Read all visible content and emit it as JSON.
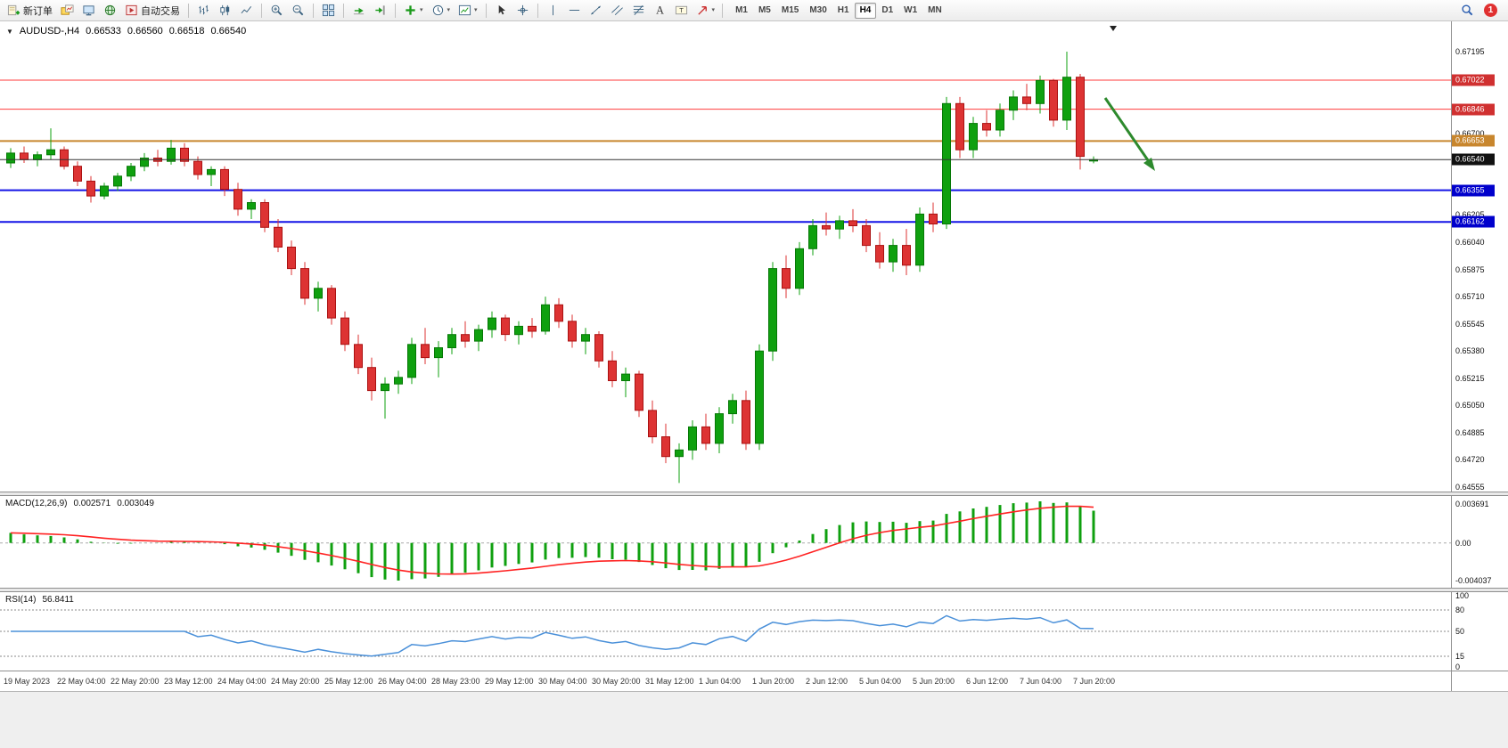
{
  "toolbar": {
    "groups": [
      [
        {
          "name": "new-order",
          "icon": "new-order-icon",
          "label": "新订单"
        },
        {
          "name": "charts-stack",
          "icon": "charts-stack-icon"
        },
        {
          "name": "terminal",
          "icon": "terminal-icon"
        },
        {
          "name": "web-community",
          "icon": "globe-icon"
        },
        {
          "name": "auto-trading",
          "icon": "play-icon",
          "label": "自动交易"
        }
      ],
      [
        {
          "name": "bar-chart-mode",
          "icon": "bars-icon"
        },
        {
          "name": "candlestick-mode",
          "icon": "candles-icon"
        },
        {
          "name": "line-chart-mode",
          "icon": "line-chart-icon"
        }
      ],
      [
        {
          "name": "zoom-in",
          "icon": "zoom-in-icon"
        },
        {
          "name": "zoom-out",
          "icon": "zoom-out-icon"
        }
      ],
      [
        {
          "name": "tile-windows",
          "icon": "tile-windows-icon"
        }
      ],
      [
        {
          "name": "auto-scroll",
          "icon": "autoscroll-icon"
        },
        {
          "name": "chart-shift",
          "icon": "shift-icon"
        }
      ],
      [
        {
          "name": "indicators",
          "icon": "indicators-icon",
          "caret": true
        },
        {
          "name": "periods",
          "icon": "clock-icon",
          "caret": true
        },
        {
          "name": "templates",
          "icon": "templates-icon",
          "caret": true
        }
      ],
      [
        {
          "name": "cursor",
          "icon": "cursor-icon"
        },
        {
          "name": "crosshair",
          "icon": "crosshair-icon"
        }
      ],
      [
        {
          "name": "vertical-line-tool",
          "icon": "vline-icon"
        },
        {
          "name": "horizontal-line-tool",
          "icon": "hline-icon"
        },
        {
          "name": "trendline-tool",
          "icon": "trendline-icon"
        },
        {
          "name": "channel-tool",
          "icon": "channel-icon"
        },
        {
          "name": "fibonacci-tool",
          "icon": "fibonacci-icon"
        },
        {
          "name": "text-tool",
          "icon": "text-icon"
        },
        {
          "name": "label-tool",
          "icon": "label-icon"
        },
        {
          "name": "arrows-tool",
          "icon": "shapes-icon",
          "caret": true
        }
      ]
    ],
    "timeframes": [
      "M1",
      "M5",
      "M15",
      "M30",
      "H1",
      "H4",
      "D1",
      "W1",
      "MN"
    ],
    "active_timeframe": "H4",
    "notification_count": "1"
  },
  "chart_data": {
    "type": "candlestick",
    "symbol": "AUDUSD-,H4",
    "timeframe": "H4",
    "open": "0.66533",
    "high": "0.66560",
    "low": "0.66518",
    "close": "0.66540",
    "price_axis": {
      "min": 0.64555,
      "max": 0.67195,
      "labels": [
        0.67195,
        0.667,
        0.66205,
        0.6604,
        0.65875,
        0.6571,
        0.65545,
        0.6538,
        0.65215,
        0.6505,
        0.64885,
        0.6472,
        0.64555
      ]
    },
    "lines": [
      {
        "price": 0.67022,
        "color": "#ff3b3b",
        "width": 1,
        "badge": "#d03030"
      },
      {
        "price": 0.66846,
        "color": "#ff3b3b",
        "width": 1,
        "badge": "#d03030"
      },
      {
        "price": 0.66653,
        "color": "#c8862d",
        "width": 2,
        "badge": "#c8862d"
      },
      {
        "price": 0.6654,
        "color": "#333333",
        "width": 1,
        "badge": "#111111",
        "is_bid": true
      },
      {
        "price": 0.66355,
        "color": "#1414e6",
        "width": 2,
        "badge": "#0000cc"
      },
      {
        "price": 0.66162,
        "color": "#1414e6",
        "width": 2,
        "badge": "#0000cc"
      }
    ],
    "time_labels": [
      "19 May 2023",
      "22 May 04:00",
      "22 May 20:00",
      "23 May 12:00",
      "24 May 04:00",
      "24 May 20:00",
      "25 May 12:00",
      "26 May 04:00",
      "28 May 23:00",
      "29 May 12:00",
      "30 May 04:00",
      "30 May 20:00",
      "31 May 12:00",
      "1 Jun 04:00",
      "1 Jun 20:00",
      "2 Jun 12:00",
      "5 Jun 04:00",
      "5 Jun 20:00",
      "6 Jun 12:00",
      "7 Jun 04:00",
      "7 Jun 20:00"
    ],
    "colors": {
      "up": "#0fa00f",
      "up_border": "#067806",
      "down": "#dd3333",
      "down_border": "#aa1111",
      "macd_hist": "#0fa00f",
      "macd_signal": "#ff2222",
      "rsi": "#4a90d9"
    },
    "annotation": {
      "type": "arrow-down-right",
      "color": "#2d8a2d"
    },
    "candles": [
      [
        0.6652,
        0.6661,
        0.6649,
        0.6658
      ],
      [
        0.6658,
        0.6662,
        0.6652,
        0.6654
      ],
      [
        0.6654,
        0.6659,
        0.665,
        0.6657
      ],
      [
        0.6657,
        0.6673,
        0.6654,
        0.666
      ],
      [
        0.666,
        0.6662,
        0.6648,
        0.665
      ],
      [
        0.665,
        0.6653,
        0.6638,
        0.6641
      ],
      [
        0.6641,
        0.6644,
        0.6628,
        0.6632
      ],
      [
        0.6632,
        0.664,
        0.663,
        0.6638
      ],
      [
        0.6638,
        0.6646,
        0.6635,
        0.6644
      ],
      [
        0.6644,
        0.6652,
        0.6641,
        0.665
      ],
      [
        0.665,
        0.6658,
        0.6647,
        0.6655
      ],
      [
        0.6655,
        0.666,
        0.665,
        0.6653
      ],
      [
        0.6653,
        0.6666,
        0.6651,
        0.6661
      ],
      [
        0.6661,
        0.6664,
        0.665,
        0.6653
      ],
      [
        0.6653,
        0.6656,
        0.6642,
        0.6645
      ],
      [
        0.6645,
        0.665,
        0.6638,
        0.6648
      ],
      [
        0.6648,
        0.665,
        0.6632,
        0.6636
      ],
      [
        0.6636,
        0.664,
        0.662,
        0.6624
      ],
      [
        0.6624,
        0.663,
        0.6618,
        0.6628
      ],
      [
        0.6628,
        0.663,
        0.661,
        0.6613
      ],
      [
        0.6613,
        0.6618,
        0.6598,
        0.6601
      ],
      [
        0.6601,
        0.6605,
        0.6584,
        0.6588
      ],
      [
        0.6588,
        0.6592,
        0.6566,
        0.657
      ],
      [
        0.657,
        0.658,
        0.6562,
        0.6576
      ],
      [
        0.6576,
        0.6578,
        0.6554,
        0.6558
      ],
      [
        0.6558,
        0.6562,
        0.6538,
        0.6542
      ],
      [
        0.6542,
        0.6548,
        0.6524,
        0.6528
      ],
      [
        0.6528,
        0.6534,
        0.6508,
        0.6514
      ],
      [
        0.6514,
        0.6522,
        0.6497,
        0.6518
      ],
      [
        0.6518,
        0.6526,
        0.6512,
        0.6522
      ],
      [
        0.6522,
        0.6546,
        0.6518,
        0.6542
      ],
      [
        0.6542,
        0.6552,
        0.653,
        0.6534
      ],
      [
        0.6534,
        0.6544,
        0.6522,
        0.654
      ],
      [
        0.654,
        0.6552,
        0.6536,
        0.6548
      ],
      [
        0.6548,
        0.6556,
        0.654,
        0.6544
      ],
      [
        0.6544,
        0.6554,
        0.6538,
        0.6551
      ],
      [
        0.6551,
        0.6562,
        0.6546,
        0.6558
      ],
      [
        0.6558,
        0.656,
        0.6544,
        0.6548
      ],
      [
        0.6548,
        0.6556,
        0.6542,
        0.6553
      ],
      [
        0.6553,
        0.6558,
        0.6546,
        0.655
      ],
      [
        0.655,
        0.6571,
        0.6548,
        0.6566
      ],
      [
        0.6566,
        0.657,
        0.6552,
        0.6556
      ],
      [
        0.6556,
        0.656,
        0.654,
        0.6544
      ],
      [
        0.6544,
        0.6552,
        0.6536,
        0.6548
      ],
      [
        0.6548,
        0.655,
        0.6528,
        0.6532
      ],
      [
        0.6532,
        0.6538,
        0.6516,
        0.652
      ],
      [
        0.652,
        0.6528,
        0.651,
        0.6524
      ],
      [
        0.6524,
        0.6526,
        0.6498,
        0.6502
      ],
      [
        0.6502,
        0.6508,
        0.6482,
        0.6486
      ],
      [
        0.6486,
        0.6494,
        0.647,
        0.6474
      ],
      [
        0.6474,
        0.6482,
        0.6458,
        0.6478
      ],
      [
        0.6478,
        0.6496,
        0.6472,
        0.6492
      ],
      [
        0.6492,
        0.65,
        0.6478,
        0.6482
      ],
      [
        0.6482,
        0.6504,
        0.6476,
        0.65
      ],
      [
        0.65,
        0.6512,
        0.6494,
        0.6508
      ],
      [
        0.6508,
        0.6514,
        0.6478,
        0.6482
      ],
      [
        0.6482,
        0.6542,
        0.6478,
        0.6538
      ],
      [
        0.6538,
        0.6592,
        0.6532,
        0.6588
      ],
      [
        0.6588,
        0.6596,
        0.657,
        0.6576
      ],
      [
        0.6576,
        0.6604,
        0.6572,
        0.66
      ],
      [
        0.66,
        0.6618,
        0.6596,
        0.6614
      ],
      [
        0.6614,
        0.6622,
        0.6608,
        0.6612
      ],
      [
        0.6612,
        0.662,
        0.6606,
        0.6617
      ],
      [
        0.6617,
        0.6624,
        0.661,
        0.6614
      ],
      [
        0.6614,
        0.6618,
        0.6598,
        0.6602
      ],
      [
        0.6602,
        0.661,
        0.6588,
        0.6592
      ],
      [
        0.6592,
        0.6606,
        0.6586,
        0.6602
      ],
      [
        0.6602,
        0.6612,
        0.6584,
        0.659
      ],
      [
        0.659,
        0.6625,
        0.6586,
        0.6621
      ],
      [
        0.6621,
        0.6628,
        0.661,
        0.6615
      ],
      [
        0.6615,
        0.6692,
        0.6612,
        0.6688
      ],
      [
        0.6688,
        0.6692,
        0.6655,
        0.666
      ],
      [
        0.666,
        0.668,
        0.6655,
        0.6676
      ],
      [
        0.6676,
        0.6684,
        0.6668,
        0.6672
      ],
      [
        0.6672,
        0.6688,
        0.6668,
        0.6684
      ],
      [
        0.6684,
        0.6696,
        0.6678,
        0.6692
      ],
      [
        0.6692,
        0.67,
        0.6684,
        0.6688
      ],
      [
        0.6688,
        0.6705,
        0.6682,
        0.6702
      ],
      [
        0.6702,
        0.6703,
        0.6674,
        0.6678
      ],
      [
        0.6678,
        0.67195,
        0.6672,
        0.6704
      ],
      [
        0.6704,
        0.6706,
        0.6648,
        0.6656
      ],
      [
        0.66533,
        0.6656,
        0.66518,
        0.6654
      ]
    ]
  },
  "indicators": {
    "macd": {
      "title": "MACD(12,26,9)",
      "value_main": "0.002571",
      "value_signal": "0.003049",
      "axis_max": "0.003691",
      "axis_zero": "0.00",
      "axis_min": "-0.004037",
      "fast": 12,
      "slow": 26,
      "signal": 9
    },
    "rsi": {
      "title": "RSI(14)",
      "value": "56.8411",
      "period": 14,
      "levels": [
        100,
        80,
        50,
        15,
        0
      ]
    }
  }
}
